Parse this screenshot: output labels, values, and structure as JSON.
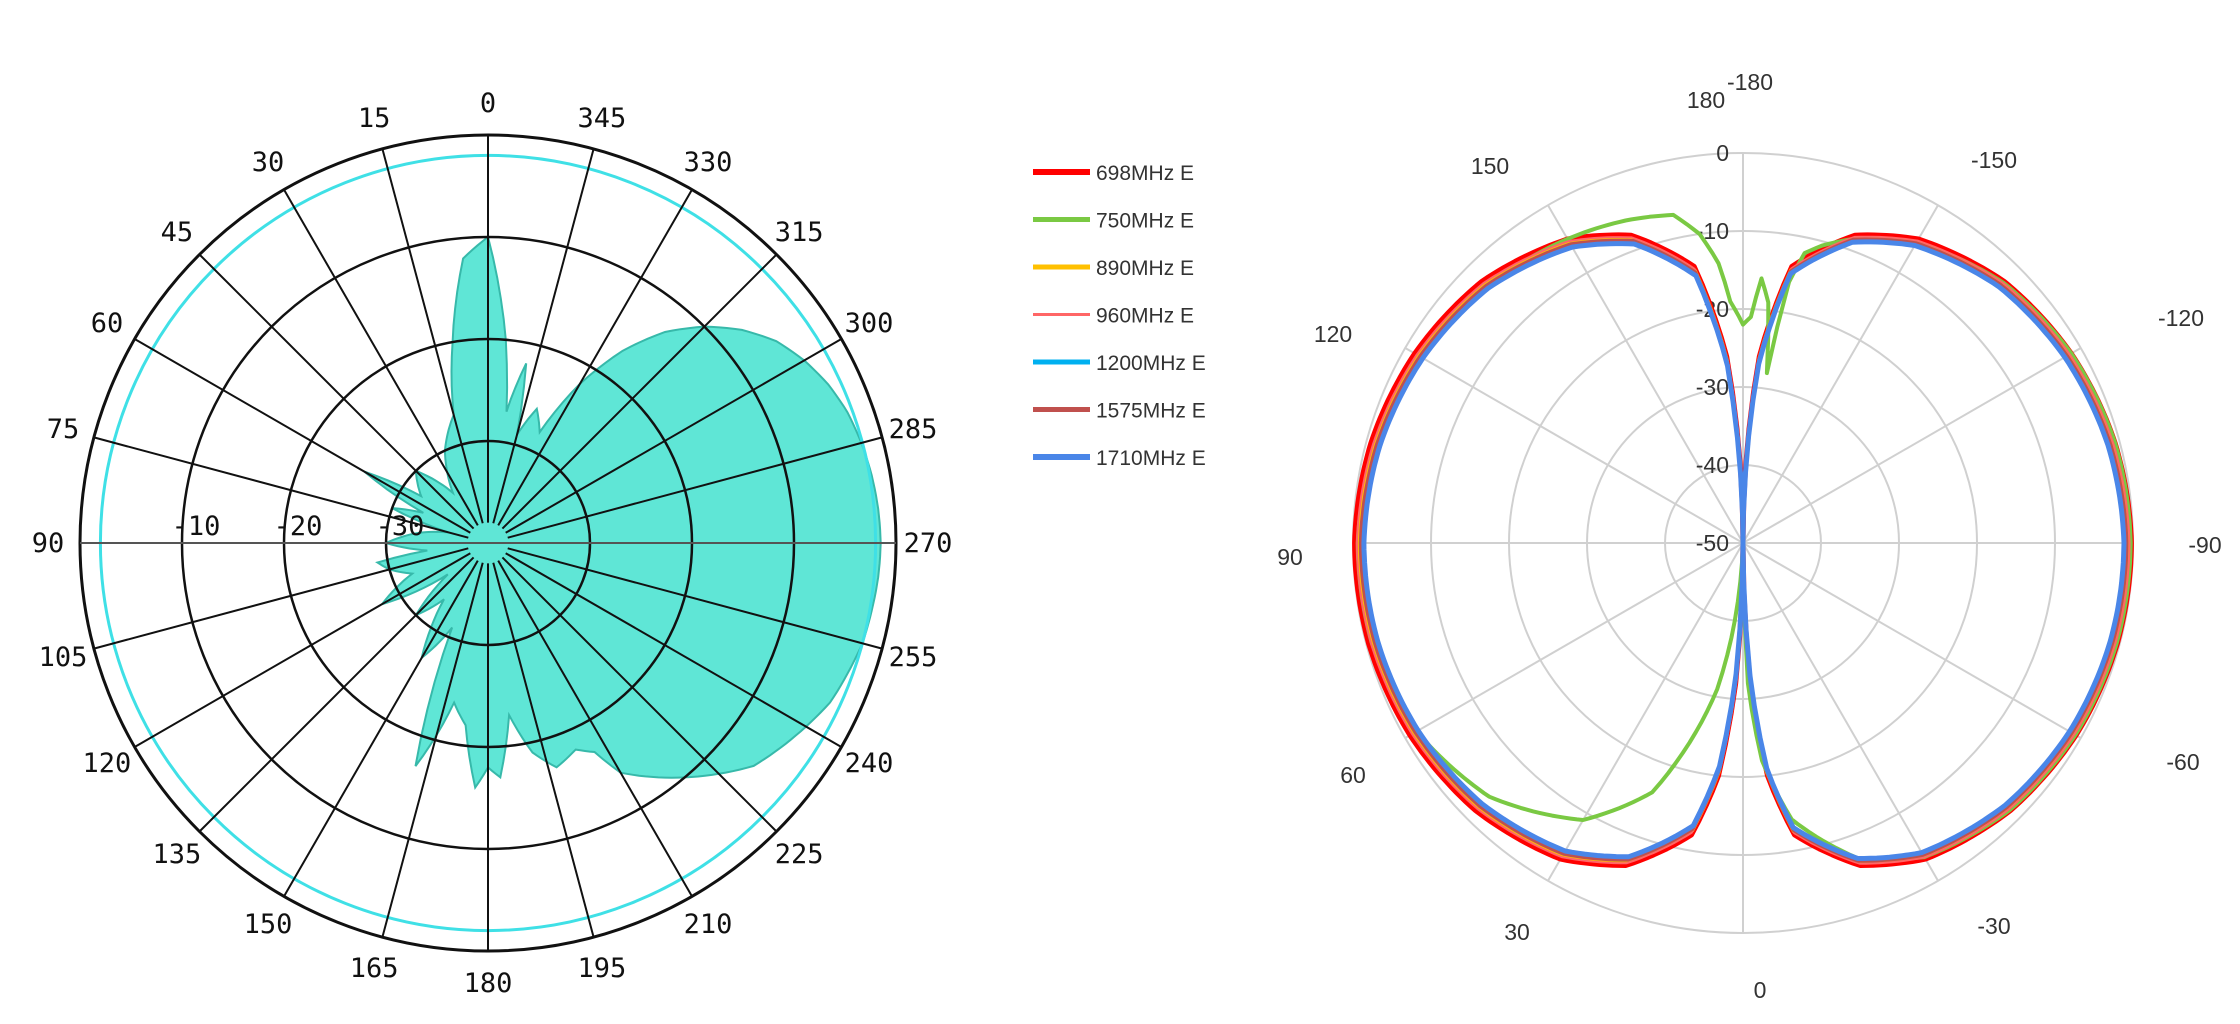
{
  "chart_data": [
    {
      "type": "polar",
      "title": "",
      "angle_labels": [
        "0",
        "15",
        "30",
        "45",
        "60",
        "75",
        "90",
        "105",
        "120",
        "135",
        "150",
        "165",
        "180",
        "195",
        "210",
        "225",
        "240",
        "255",
        "270",
        "285",
        "300",
        "315",
        "330",
        "345"
      ],
      "angle_direction": "counterclockwise, 0 at top",
      "radial_labels": [
        "-10",
        "-20",
        "-30"
      ],
      "radial_range_db": [
        -40,
        0
      ],
      "reference_circle_db": -2,
      "pattern_color": "#5fe6d6",
      "grid_color": "#111111",
      "reference_color": "#3fe0e6",
      "series": [
        {
          "angles_deg": [
            0,
            5,
            10,
            15,
            25,
            35,
            45,
            55,
            60,
            65,
            70,
            75,
            82,
            90,
            97,
            100,
            105,
            112,
            120,
            128,
            135,
            142,
            150,
            157,
            162,
            168,
            173,
            177,
            180,
            183,
            187,
            192,
            197,
            203,
            207,
            210,
            215,
            220,
            225,
            230,
            235,
            240,
            245,
            250,
            255,
            260,
            265,
            270,
            275,
            280,
            285,
            290,
            295,
            300,
            305,
            310,
            315,
            320,
            325,
            330,
            335,
            340,
            345,
            348,
            352,
            355
          ],
          "values_db": [
            -10,
            -12,
            -20,
            -27,
            -30,
            -34,
            -30,
            -32,
            -26,
            -33,
            -30,
            -36,
            -33,
            -30,
            -34,
            -29,
            -30,
            -32,
            -28,
            -35,
            -30,
            -33,
            -27,
            -31,
            -17,
            -24,
            -22,
            -16,
            -18,
            -17,
            -23,
            -19,
            -17,
            -18,
            -17,
            -14,
            -12,
            -10,
            -8,
            -6,
            -5,
            -4,
            -3,
            -2.5,
            -2,
            -1.8,
            -1.6,
            -1.5,
            -1.6,
            -1.8,
            -2.1,
            -2.5,
            -3.2,
            -4.2,
            -5.5,
            -7.5,
            -10,
            -13,
            -17,
            -22,
            -28,
            -26,
            -29,
            -22,
            -27,
            -20
          ]
        }
      ]
    },
    {
      "type": "polar",
      "title": "",
      "angle_labels": [
        "-180",
        "180",
        "-150",
        "-120",
        "-90",
        "-60",
        "-30",
        "0",
        "30",
        "60",
        "90",
        "120",
        "150"
      ],
      "angle_direction": "0 at bottom, -90 at right, 90 at left",
      "radial_labels": [
        "0",
        "-10",
        "-20",
        "-30",
        "-40",
        "-50"
      ],
      "radial_range_db": [
        -50,
        0
      ],
      "grid_color": "#d0d0d0",
      "legend_position": "between charts",
      "series": [
        {
          "name": "698MHz E",
          "color": "#ff0000",
          "offset": 0.0,
          "width": 5
        },
        {
          "name": "750MHz E",
          "color": "#7ac943",
          "offset": 0.0,
          "width": 4
        },
        {
          "name": "890MHz E",
          "color": "#ffc000",
          "offset": -0.6,
          "width": 4
        },
        {
          "name": "960MHz E",
          "color": "#ff6666",
          "offset": -0.3,
          "width": 2
        },
        {
          "name": "1200MHz E",
          "color": "#00b0f0",
          "offset": -1.0,
          "width": 4
        },
        {
          "name": "1575MHz E",
          "color": "#c0504d",
          "offset": -0.8,
          "width": 4
        },
        {
          "name": "1710MHz E",
          "color": "#4a86e8",
          "offset": -1.2,
          "width": 5
        }
      ],
      "base_pattern": {
        "angles_deg": [
          0,
          3,
          6,
          10,
          20,
          30,
          45,
          60,
          75,
          90,
          105,
          120,
          135,
          150,
          160,
          170,
          175,
          178,
          180
        ],
        "values_db": [
          -50,
          -32,
          -20,
          -12,
          -6,
          -3.2,
          -1.5,
          -0.7,
          -0.3,
          -0.2,
          -0.6,
          -1.4,
          -2.6,
          -5,
          -8,
          -14,
          -26,
          -40,
          -50
        ]
      },
      "green_pattern": {
        "angles_deg": [
          0,
          -2,
          -5,
          -10,
          -20,
          -30,
          -45,
          -60,
          -75,
          -90,
          -105,
          -120,
          -135,
          -150,
          -160,
          -165,
          -168,
          -170,
          -172,
          -174,
          -176,
          -178,
          -180,
          2,
          6,
          10,
          20,
          30,
          45,
          60,
          75,
          90,
          105,
          120,
          135,
          150,
          160,
          168,
          172,
          175,
          177,
          180
        ],
        "values_db": [
          -50,
          -32,
          -22,
          -14,
          -7,
          -3.5,
          -1.6,
          -0.8,
          -0.4,
          -0.3,
          -0.6,
          -1.4,
          -2.8,
          -5.5,
          -8.5,
          -10.5,
          -12,
          -16,
          -28,
          -19,
          -16,
          -21,
          -22,
          -50,
          -40,
          -31,
          -16,
          -9,
          -4,
          -1.7,
          -0.7,
          -0.6,
          -1.2,
          -2.3,
          -3.6,
          -5,
          -6,
          -7,
          -10,
          -14,
          -19,
          -22
        ]
      }
    }
  ]
}
